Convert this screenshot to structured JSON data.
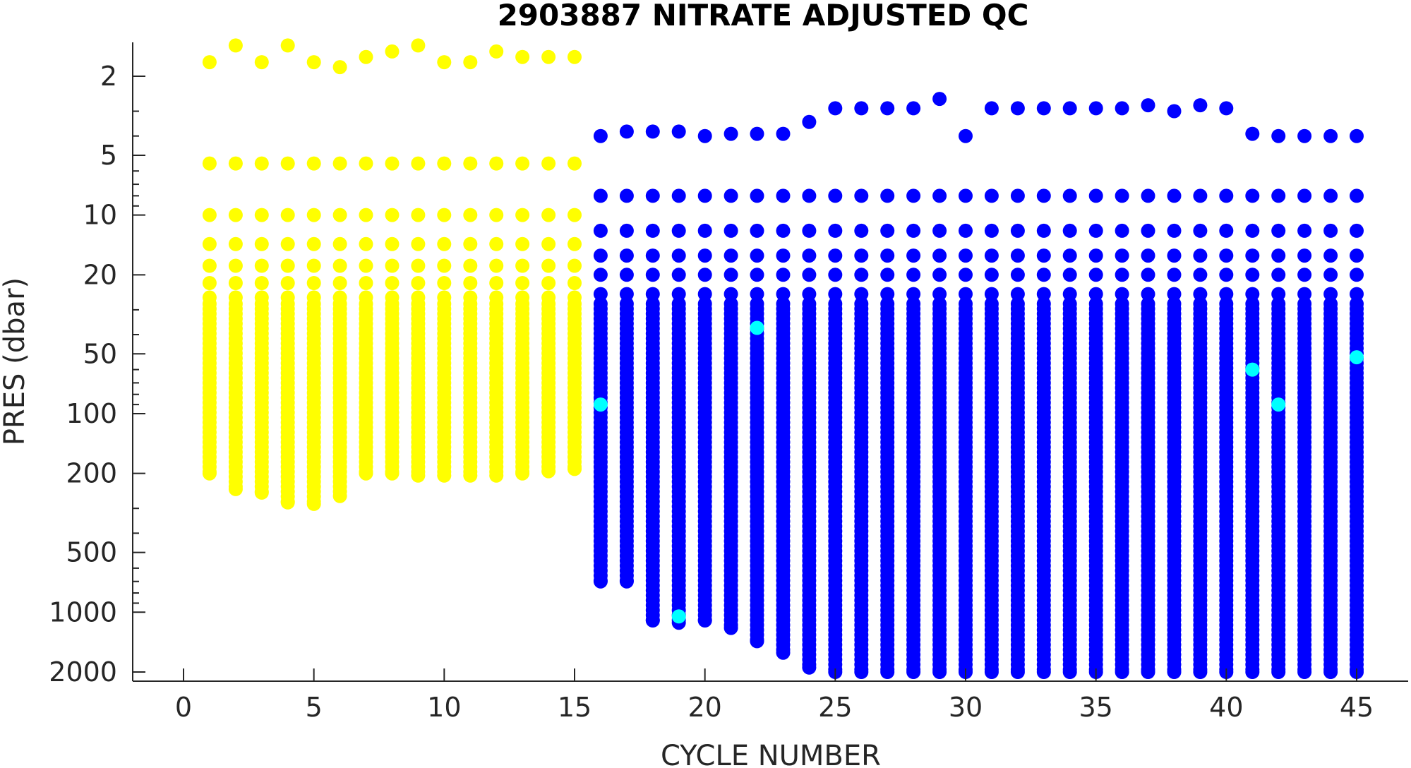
{
  "chart_data": {
    "type": "scatter",
    "title": "2903887  NITRATE ADJUSTED QC",
    "xlabel": "CYCLE NUMBER",
    "ylabel": "PRES (dbar)",
    "xlim": [
      -2,
      47
    ],
    "ylim": [
      1.5,
      2200
    ],
    "y_scale": "log",
    "y_reversed": true,
    "x_ticks": [
      0,
      5,
      10,
      15,
      20,
      25,
      30,
      35,
      40,
      45
    ],
    "x_tick_labels": [
      "0",
      "5",
      "10",
      "15",
      "20",
      "25",
      "30",
      "35",
      "40",
      "45"
    ],
    "y_ticks": [
      2,
      5,
      10,
      20,
      50,
      100,
      200,
      500,
      1000,
      2000
    ],
    "y_tick_labels": [
      "2",
      "5",
      "10",
      "20",
      "50",
      "100",
      "200",
      "500",
      "1000",
      "2000"
    ],
    "grid": false,
    "legend": "none",
    "colors": {
      "qc1": "#ffff00",
      "qc2": "#0000ff",
      "qc3": "#00ffff"
    },
    "series": [
      {
        "qc_class": "qc1",
        "color": "#ffff00",
        "profiles": [
          {
            "cycle": 1,
            "top": 1.7,
            "bottom": 200
          },
          {
            "cycle": 2,
            "top": 1.4,
            "bottom": 240
          },
          {
            "cycle": 3,
            "top": 1.7,
            "bottom": 250
          },
          {
            "cycle": 4,
            "top": 1.4,
            "bottom": 280
          },
          {
            "cycle": 5,
            "top": 1.7,
            "bottom": 285
          },
          {
            "cycle": 6,
            "top": 1.8,
            "bottom": 260
          },
          {
            "cycle": 7,
            "top": 1.6,
            "bottom": 200
          },
          {
            "cycle": 8,
            "top": 1.5,
            "bottom": 200
          },
          {
            "cycle": 9,
            "top": 1.4,
            "bottom": 205
          },
          {
            "cycle": 10,
            "top": 1.7,
            "bottom": 205
          },
          {
            "cycle": 11,
            "top": 1.7,
            "bottom": 205
          },
          {
            "cycle": 12,
            "top": 1.5,
            "bottom": 205
          },
          {
            "cycle": 13,
            "top": 1.6,
            "bottom": 200
          },
          {
            "cycle": 14,
            "top": 1.6,
            "bottom": 195
          },
          {
            "cycle": 15,
            "top": 1.6,
            "bottom": 190
          }
        ]
      },
      {
        "qc_class": "qc2",
        "color": "#0000ff",
        "profiles": [
          {
            "cycle": 16,
            "top": 4.0,
            "bottom": 700
          },
          {
            "cycle": 17,
            "top": 3.8,
            "bottom": 700
          },
          {
            "cycle": 18,
            "top": 3.8,
            "bottom": 1100
          },
          {
            "cycle": 19,
            "top": 3.8,
            "bottom": 1130
          },
          {
            "cycle": 20,
            "top": 4.0,
            "bottom": 1100
          },
          {
            "cycle": 21,
            "top": 3.9,
            "bottom": 1200
          },
          {
            "cycle": 22,
            "top": 3.9,
            "bottom": 1400
          },
          {
            "cycle": 23,
            "top": 3.9,
            "bottom": 1600
          },
          {
            "cycle": 24,
            "top": 3.4,
            "bottom": 1900
          },
          {
            "cycle": 25,
            "top": 2.9,
            "bottom": 2000
          },
          {
            "cycle": 26,
            "top": 2.9,
            "bottom": 2000
          },
          {
            "cycle": 27,
            "top": 2.9,
            "bottom": 2000
          },
          {
            "cycle": 28,
            "top": 2.9,
            "bottom": 2000
          },
          {
            "cycle": 29,
            "top": 2.6,
            "bottom": 2000
          },
          {
            "cycle": 30,
            "top": 4.0,
            "bottom": 2000
          },
          {
            "cycle": 31,
            "top": 2.9,
            "bottom": 2000
          },
          {
            "cycle": 32,
            "top": 2.9,
            "bottom": 2000
          },
          {
            "cycle": 33,
            "top": 2.9,
            "bottom": 2000
          },
          {
            "cycle": 34,
            "top": 2.9,
            "bottom": 2000
          },
          {
            "cycle": 35,
            "top": 2.9,
            "bottom": 2000
          },
          {
            "cycle": 36,
            "top": 2.9,
            "bottom": 2000
          },
          {
            "cycle": 37,
            "top": 2.8,
            "bottom": 2000
          },
          {
            "cycle": 38,
            "top": 3.0,
            "bottom": 2000
          },
          {
            "cycle": 39,
            "top": 2.8,
            "bottom": 2000
          },
          {
            "cycle": 40,
            "top": 2.9,
            "bottom": 2000
          },
          {
            "cycle": 41,
            "top": 3.9,
            "bottom": 2000
          },
          {
            "cycle": 42,
            "top": 4.0,
            "bottom": 2000
          },
          {
            "cycle": 43,
            "top": 4.0,
            "bottom": 2000
          },
          {
            "cycle": 44,
            "top": 4.0,
            "bottom": 2000
          },
          {
            "cycle": 45,
            "top": 4.0,
            "bottom": 2000
          }
        ]
      },
      {
        "qc_class": "qc3",
        "color": "#00ffff",
        "points": [
          {
            "cycle": 16,
            "pres": 90
          },
          {
            "cycle": 19,
            "pres": 1050
          },
          {
            "cycle": 22,
            "pres": 37
          },
          {
            "cycle": 41,
            "pres": 60
          },
          {
            "cycle": 42,
            "pres": 90
          },
          {
            "cycle": 45,
            "pres": 52
          }
        ]
      }
    ]
  }
}
